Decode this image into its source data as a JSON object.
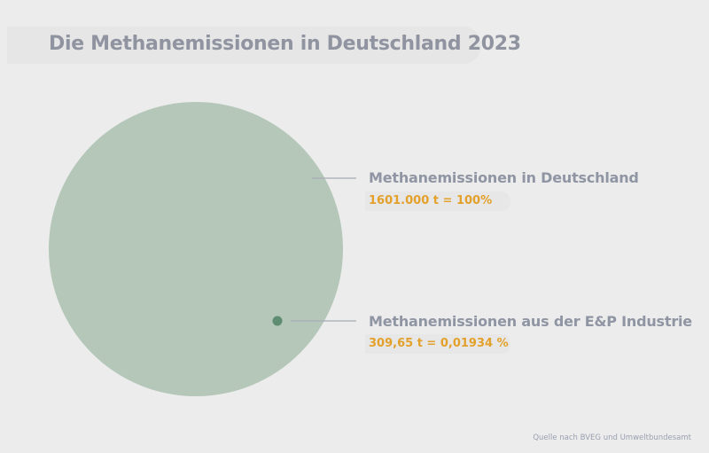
{
  "chart_data": {
    "type": "bubble",
    "title": "Die Methanemissionen in Deutschland 2023",
    "series": [
      {
        "name": "Methanemissionen in Deutschland",
        "value": 1601000,
        "value_label": "1601.000 t = 100%",
        "color": "#b4c7b8"
      },
      {
        "name": "Methanemissionen aus der E&P Industrie",
        "value": 309.65,
        "value_label": "309,65 t = 0,01934 %",
        "color": "#5f8d72"
      }
    ],
    "source": "Quelle nach BVEG und Umweltbundesamt"
  }
}
